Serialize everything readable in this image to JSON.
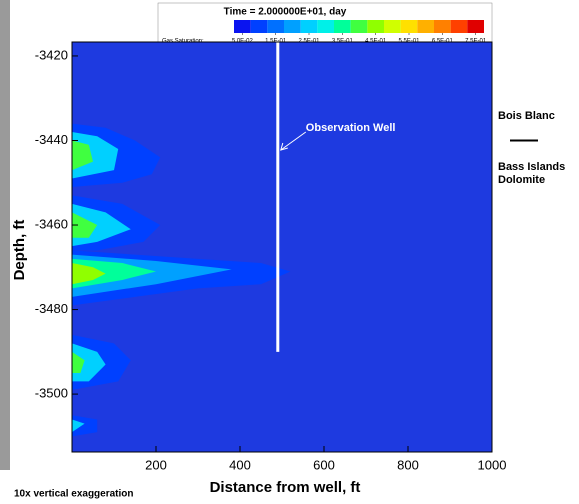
{
  "chart_data": {
    "type": "contour",
    "title": "Time = 2.000000E+01, day",
    "colorbar_label": "Gas Saturation:",
    "colorbar_levels": [
      0.05,
      0.1,
      0.15,
      0.2,
      0.25,
      0.3,
      0.35,
      0.4,
      0.45,
      0.5,
      0.55,
      0.6,
      0.65,
      0.7,
      0.75
    ],
    "colorbar_colors": [
      "#0a14f0",
      "#0040ff",
      "#0070ff",
      "#00a0ff",
      "#00d0ff",
      "#00f0e8",
      "#00ff9a",
      "#40ff40",
      "#90ff00",
      "#d0ff00",
      "#ffe000",
      "#ffb000",
      "#ff8000",
      "#ff4000",
      "#e00000"
    ],
    "colorbar_ticks": [
      {
        "value": 0.05,
        "label": "5.0E-02"
      },
      {
        "value": 0.15,
        "label": "1.5E-01"
      },
      {
        "value": 0.25,
        "label": "2.5E-01"
      },
      {
        "value": 0.35,
        "label": "3.5E-01"
      },
      {
        "value": 0.45,
        "label": "4.5E-01"
      },
      {
        "value": 0.55,
        "label": "5.5E-01"
      },
      {
        "value": 0.65,
        "label": "6.5E-01"
      },
      {
        "value": 0.75,
        "label": "7.5E-01"
      }
    ],
    "background_color": "#1e3ae0",
    "x_label": "Distance from well, ft",
    "y_label": "Depth, ft",
    "xlim": [
      0,
      1000
    ],
    "ylim": [
      -3513.7,
      -3416.7
    ],
    "xticks": [
      200,
      400,
      600,
      800,
      1000
    ],
    "yticks": [
      -3420,
      -3440,
      -3460,
      -3480,
      -3500
    ],
    "contours": [
      {
        "level": 0.1,
        "points": [
          [
            0,
            -3466
          ],
          [
            150,
            -3467
          ],
          [
            300,
            -3468
          ],
          [
            450,
            -3469
          ],
          [
            520,
            -3471
          ],
          [
            450,
            -3474
          ],
          [
            300,
            -3475
          ],
          [
            150,
            -3477
          ],
          [
            0,
            -3479
          ]
        ]
      },
      {
        "level": 0.2,
        "points": [
          [
            0,
            -3467
          ],
          [
            200,
            -3468.5
          ],
          [
            380,
            -3470.5
          ],
          [
            200,
            -3474
          ],
          [
            0,
            -3477
          ]
        ]
      },
      {
        "level": 0.35,
        "points": [
          [
            0,
            -3468
          ],
          [
            120,
            -3469
          ],
          [
            200,
            -3471
          ],
          [
            120,
            -3473
          ],
          [
            0,
            -3475
          ]
        ]
      },
      {
        "level": 0.45,
        "points": [
          [
            0,
            -3469
          ],
          [
            50,
            -3470
          ],
          [
            80,
            -3471.5
          ],
          [
            50,
            -3473
          ],
          [
            0,
            -3474
          ]
        ]
      },
      {
        "level": 0.1,
        "points": [
          [
            0,
            -3436
          ],
          [
            80,
            -3437
          ],
          [
            150,
            -3440
          ],
          [
            210,
            -3444
          ],
          [
            190,
            -3448
          ],
          [
            120,
            -3450
          ],
          [
            0,
            -3451
          ]
        ]
      },
      {
        "level": 0.25,
        "points": [
          [
            0,
            -3438
          ],
          [
            60,
            -3439
          ],
          [
            110,
            -3442
          ],
          [
            100,
            -3447
          ],
          [
            0,
            -3449
          ]
        ]
      },
      {
        "level": 0.4,
        "points": [
          [
            0,
            -3440
          ],
          [
            40,
            -3441
          ],
          [
            50,
            -3445
          ],
          [
            0,
            -3447
          ]
        ]
      },
      {
        "level": 0.1,
        "points": [
          [
            0,
            -3453
          ],
          [
            120,
            -3455
          ],
          [
            210,
            -3460
          ],
          [
            170,
            -3464
          ],
          [
            60,
            -3466
          ],
          [
            0,
            -3466
          ]
        ]
      },
      {
        "level": 0.25,
        "points": [
          [
            0,
            -3455
          ],
          [
            80,
            -3457
          ],
          [
            140,
            -3461
          ],
          [
            60,
            -3464
          ],
          [
            0,
            -3465
          ]
        ]
      },
      {
        "level": 0.4,
        "points": [
          [
            0,
            -3457
          ],
          [
            60,
            -3460
          ],
          [
            40,
            -3463
          ],
          [
            0,
            -3463
          ]
        ]
      },
      {
        "level": 0.1,
        "points": [
          [
            0,
            -3486
          ],
          [
            100,
            -3488
          ],
          [
            140,
            -3492
          ],
          [
            110,
            -3497
          ],
          [
            0,
            -3499
          ]
        ]
      },
      {
        "level": 0.25,
        "points": [
          [
            0,
            -3488
          ],
          [
            60,
            -3490
          ],
          [
            80,
            -3493
          ],
          [
            40,
            -3497
          ],
          [
            0,
            -3497
          ]
        ]
      },
      {
        "level": 0.4,
        "points": [
          [
            0,
            -3490
          ],
          [
            30,
            -3492
          ],
          [
            20,
            -3495
          ],
          [
            0,
            -3495
          ]
        ]
      },
      {
        "level": 0.1,
        "points": [
          [
            0,
            -3505
          ],
          [
            60,
            -3506
          ],
          [
            60,
            -3509
          ],
          [
            0,
            -3510
          ]
        ]
      },
      {
        "level": 0.25,
        "points": [
          [
            0,
            -3506
          ],
          [
            30,
            -3507
          ],
          [
            0,
            -3509
          ]
        ]
      }
    ],
    "well": {
      "label": "Observation Well",
      "x": 490,
      "bottom": -3490
    },
    "formation_top": {
      "depth": -3440,
      "above": "Bois Blanc",
      "below": [
        "Bass Islands",
        "Dolomite"
      ]
    },
    "note": "10x vertical exaggeration"
  }
}
